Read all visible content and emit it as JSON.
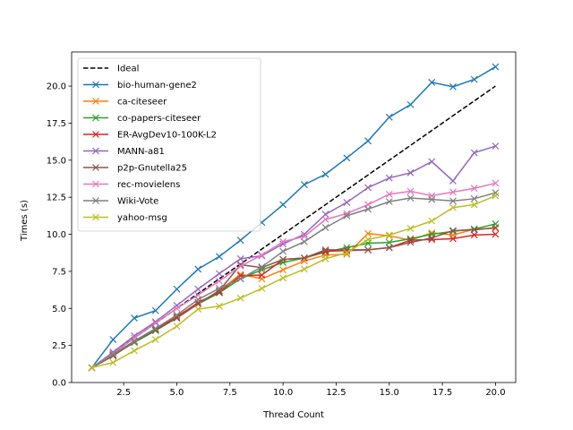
{
  "chart_data": {
    "type": "line",
    "title": "",
    "xlabel": "Thread Count",
    "ylabel": "Times (s)",
    "xlim": [
      0.05,
      20.95
    ],
    "ylim": [
      0,
      22.3
    ],
    "xticks": [
      2.5,
      5.0,
      7.5,
      10.0,
      12.5,
      15.0,
      17.5,
      20.0
    ],
    "xtick_labels": [
      "2.5",
      "5.0",
      "7.5",
      "10.0",
      "12.5",
      "15.0",
      "17.5",
      "20.0"
    ],
    "yticks": [
      0.0,
      2.5,
      5.0,
      7.5,
      10.0,
      12.5,
      15.0,
      17.5,
      20.0
    ],
    "ytick_labels": [
      "0.0",
      "2.5",
      "5.0",
      "7.5",
      "10.0",
      "12.5",
      "15.0",
      "17.5",
      "20.0"
    ],
    "grid": false,
    "legend_position": "top-left",
    "x": [
      1,
      2,
      3,
      4,
      5,
      6,
      7,
      8,
      9,
      10,
      11,
      12,
      13,
      14,
      15,
      16,
      17,
      18,
      19,
      20
    ],
    "series": [
      {
        "name": "Ideal",
        "color": "#000000",
        "style": "dashed",
        "marker": "none",
        "x": [
          1,
          20
        ],
        "values": [
          1,
          20
        ]
      },
      {
        "name": "bio-human-gene2",
        "color": "#1f77b4",
        "style": "solid",
        "marker": "x",
        "values": [
          1.0,
          2.9,
          4.35,
          4.85,
          6.3,
          7.65,
          8.5,
          9.6,
          10.8,
          12.0,
          13.35,
          14.05,
          15.15,
          16.3,
          17.9,
          18.75,
          20.25,
          19.95,
          20.45,
          21.3
        ]
      },
      {
        "name": "ca-citeseer",
        "color": "#ff7f0e",
        "style": "solid",
        "marker": "x",
        "values": [
          1.0,
          1.8,
          2.75,
          3.55,
          4.5,
          5.3,
          6.2,
          7.3,
          7.0,
          7.6,
          8.2,
          8.6,
          8.65,
          10.05,
          9.9,
          9.6,
          10.1,
          9.95,
          10.35,
          10.4
        ]
      },
      {
        "name": "co-papers-citeseer",
        "color": "#2ca02c",
        "style": "solid",
        "marker": "x",
        "values": [
          1.0,
          1.85,
          2.7,
          3.5,
          4.35,
          5.3,
          6.05,
          7.0,
          7.6,
          8.1,
          8.4,
          8.8,
          9.1,
          9.4,
          9.45,
          9.7,
          10.0,
          10.2,
          10.35,
          10.7
        ]
      },
      {
        "name": "ER-AvgDev10-100K-L2",
        "color": "#d62728",
        "style": "solid",
        "marker": "x",
        "values": [
          1.0,
          1.85,
          2.8,
          3.6,
          4.4,
          5.4,
          6.1,
          7.2,
          7.25,
          8.3,
          8.4,
          8.85,
          8.9,
          8.95,
          9.1,
          9.6,
          9.65,
          9.7,
          9.95,
          10.0
        ]
      },
      {
        "name": "MANN-a81",
        "color": "#9467bd",
        "style": "solid",
        "marker": "x",
        "values": [
          1.0,
          2.05,
          3.15,
          4.1,
          5.2,
          6.3,
          7.35,
          8.35,
          8.55,
          9.35,
          10.0,
          11.35,
          12.15,
          13.15,
          13.8,
          14.15,
          14.9,
          13.6,
          15.5,
          15.95
        ]
      },
      {
        "name": "p2p-Gnutella25",
        "color": "#8c564b",
        "style": "solid",
        "marker": "x",
        "values": [
          1.0,
          1.8,
          2.75,
          3.55,
          4.35,
          5.3,
          6.2,
          7.95,
          7.75,
          8.3,
          8.4,
          8.95,
          8.95,
          8.95,
          9.1,
          9.45,
          9.75,
          10.25,
          10.3,
          10.45
        ]
      },
      {
        "name": "rec-movielens",
        "color": "#e377c2",
        "style": "solid",
        "marker": "x",
        "values": [
          1.0,
          1.95,
          3.0,
          4.0,
          5.0,
          5.9,
          6.85,
          7.85,
          8.6,
          9.5,
          9.85,
          11.0,
          11.4,
          12.0,
          12.7,
          12.9,
          12.6,
          12.85,
          13.1,
          13.45
        ]
      },
      {
        "name": "Wiki-Vote",
        "color": "#7f7f7f",
        "style": "solid",
        "marker": "x",
        "values": [
          1.0,
          1.9,
          2.8,
          3.65,
          4.55,
          5.6,
          6.35,
          7.0,
          7.8,
          8.85,
          9.5,
          10.45,
          11.25,
          11.7,
          12.2,
          12.45,
          12.35,
          12.25,
          12.4,
          12.8
        ]
      },
      {
        "name": "yahoo-msg",
        "color": "#bcbd22",
        "style": "solid",
        "marker": "x",
        "values": [
          1.0,
          1.35,
          2.15,
          2.9,
          3.8,
          4.95,
          5.15,
          5.7,
          6.35,
          7.05,
          7.65,
          8.35,
          8.75,
          9.65,
          9.95,
          10.4,
          10.9,
          11.8,
          12.0,
          12.6
        ]
      }
    ]
  }
}
